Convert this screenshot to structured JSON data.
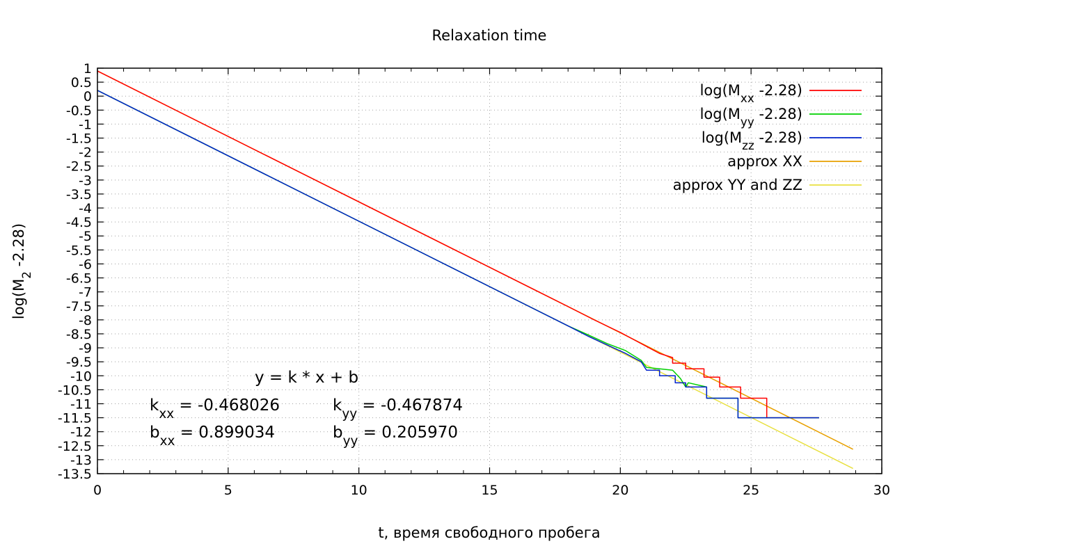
{
  "chart_data": {
    "type": "line",
    "title": "Relaxation time",
    "xlabel": "t, время свободного пробега",
    "ylabel": {
      "base": "log(M",
      "sub": "2",
      "rest": " -2.28)"
    },
    "xlim": [
      0,
      30
    ],
    "ylim": [
      -13.5,
      1
    ],
    "x_ticks": [
      0,
      5,
      10,
      15,
      20,
      25,
      30
    ],
    "x_minor_step": 1,
    "y_ticks": [
      "1",
      "0.5",
      "0",
      "-0.5",
      "-1",
      "-1.5",
      "-2",
      "-2.5",
      "-3",
      "-3.5",
      "-4",
      "-4.5",
      "-5",
      "-5.5",
      "-6",
      "-6.5",
      "-7",
      "-7.5",
      "-8",
      "-8.5",
      "-9",
      "-9.5",
      "-10",
      "-10.5",
      "-11",
      "-11.5",
      "-12",
      "-12.5",
      "-13",
      "-13.5"
    ],
    "grid": true,
    "legend_position": "top-right",
    "series": [
      {
        "legend": {
          "base": "log(M",
          "sub": "xx",
          "rest": " -2.28)"
        },
        "color": "#ff0000",
        "points": [
          [
            0,
            0.899
          ],
          [
            18,
            -7.525
          ],
          [
            19,
            -8.0
          ],
          [
            20,
            -8.45
          ],
          [
            20.5,
            -8.7
          ],
          [
            21,
            -8.95
          ],
          [
            21.5,
            -9.2
          ],
          [
            22,
            -9.35
          ],
          [
            22,
            -9.55
          ],
          [
            22.5,
            -9.55
          ],
          [
            22.5,
            -9.75
          ],
          [
            23.2,
            -9.75
          ],
          [
            23.2,
            -10.05
          ],
          [
            23.8,
            -10.05
          ],
          [
            23.8,
            -10.4
          ],
          [
            24.6,
            -10.4
          ],
          [
            24.6,
            -10.8
          ],
          [
            25.6,
            -10.8
          ],
          [
            25.6,
            -11.5
          ],
          [
            27.6,
            -11.5
          ]
        ]
      },
      {
        "legend": {
          "base": "log(M",
          "sub": "yy",
          "rest": " -2.28)"
        },
        "color": "#00d000",
        "points": [
          [
            0,
            0.206
          ],
          [
            18,
            -8.216
          ],
          [
            18.8,
            -8.55
          ],
          [
            19.5,
            -8.85
          ],
          [
            20.2,
            -9.1
          ],
          [
            20.8,
            -9.45
          ],
          [
            21.0,
            -9.7
          ],
          [
            21.5,
            -9.75
          ],
          [
            22,
            -9.8
          ],
          [
            22.3,
            -10.1
          ],
          [
            22.5,
            -10.4
          ],
          [
            22.6,
            -10.25
          ],
          [
            23.3,
            -10.4
          ],
          [
            23.3,
            -10.8
          ],
          [
            24.5,
            -10.8
          ],
          [
            24.5,
            -11.5
          ],
          [
            27.6,
            -11.5
          ]
        ]
      },
      {
        "legend": {
          "base": "log(M",
          "sub": "zz",
          "rest": " -2.28)"
        },
        "color": "#0022cc",
        "points": [
          [
            0,
            0.206
          ],
          [
            18,
            -8.216
          ],
          [
            18.8,
            -8.6
          ],
          [
            19.5,
            -8.9
          ],
          [
            20.2,
            -9.2
          ],
          [
            20.8,
            -9.5
          ],
          [
            21.0,
            -9.8
          ],
          [
            21.5,
            -9.8
          ],
          [
            21.5,
            -10.0
          ],
          [
            22.1,
            -10.0
          ],
          [
            22.1,
            -10.25
          ],
          [
            22.5,
            -10.25
          ],
          [
            22.5,
            -10.4
          ],
          [
            23.3,
            -10.4
          ],
          [
            23.3,
            -10.8
          ],
          [
            24.5,
            -10.8
          ],
          [
            24.5,
            -11.5
          ],
          [
            27.6,
            -11.5
          ]
        ]
      },
      {
        "legend": {
          "text": "approx XX"
        },
        "color": "#e8a000",
        "k": -0.468026,
        "b": 0.899034,
        "x_range": [
          0,
          28.9
        ]
      },
      {
        "legend": {
          "text": "approx YY and ZZ"
        },
        "color": "#e8e040",
        "k": -0.467874,
        "b": 0.20597,
        "x_range": [
          0,
          28.9
        ]
      }
    ],
    "annotations": [
      {
        "base": "y = k * x + b",
        "sub": "",
        "rest": ""
      },
      {
        "base": "k",
        "sub": "xx",
        "rest": " = -0.468026"
      },
      {
        "base": "k",
        "sub": "yy",
        "rest": " = -0.467874"
      },
      {
        "base": "b",
        "sub": "xx",
        "rest": " = 0.899034"
      },
      {
        "base": "b",
        "sub": "yy",
        "rest": " = 0.205970"
      }
    ]
  }
}
